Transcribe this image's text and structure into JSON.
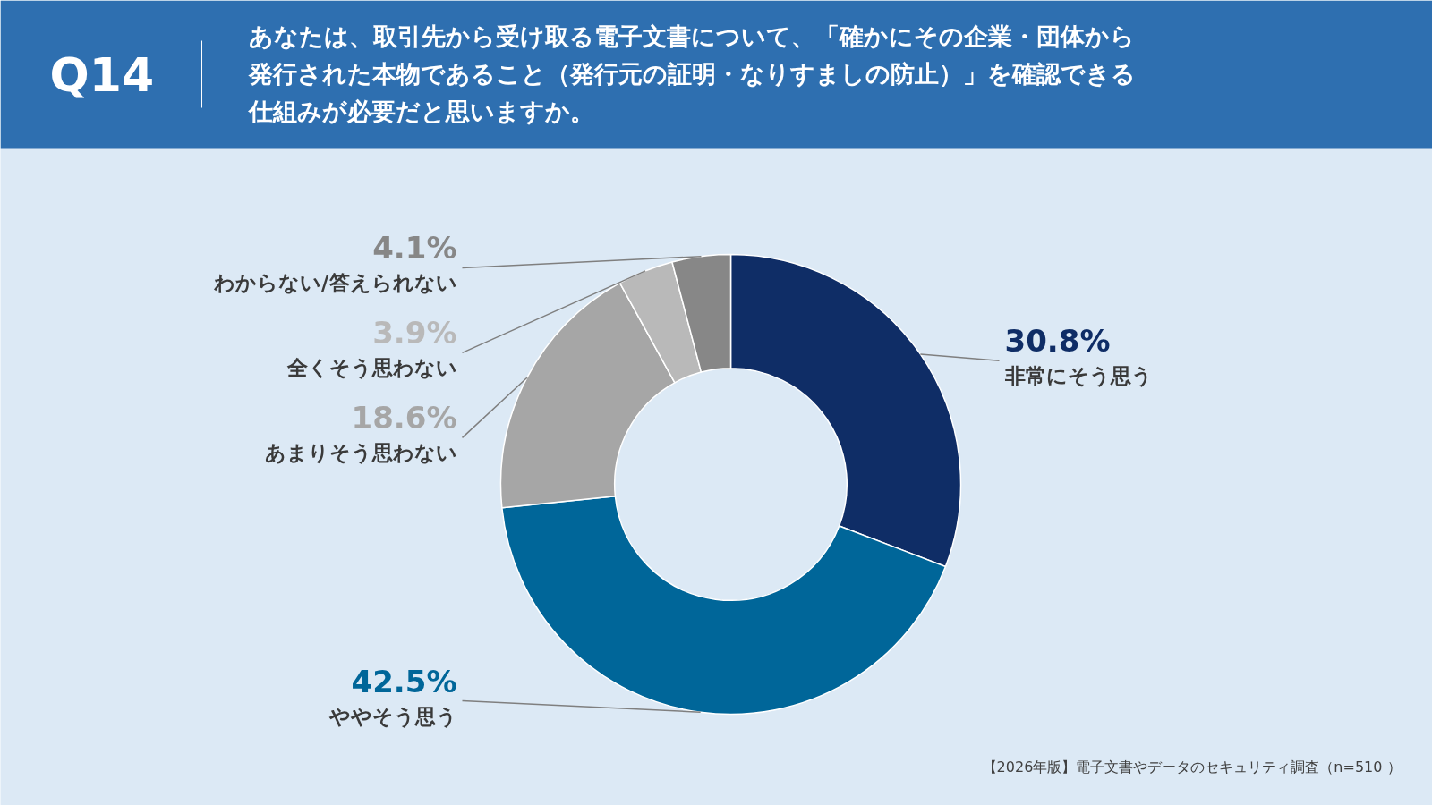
{
  "chart_data": {
    "type": "donut",
    "title": "Q14",
    "subtitle": "あなたは、取引先から受け取る電子文書について、「確かにその企業・団体から発行された本物であること（発行元の証明・なりすましの防止）」を確認できる仕組みが必要だと思いますか。",
    "categories": [
      "非常にそう思う",
      "ややそう思う",
      "あまりそう思わない",
      "全くそう思わない",
      "わからない/答えられない"
    ],
    "values": [
      30.8,
      42.5,
      18.6,
      3.9,
      4.1
    ],
    "colors": [
      "#0f2d66",
      "#006699",
      "#a6a6a6",
      "#b9b9b9",
      "#878787"
    ],
    "value_labels": [
      "30.8%",
      "42.5%",
      "18.6%",
      "3.9%",
      "4.1%"
    ],
    "annotations": [
      "【2026年版】電子文書やデータのセキュリティ調査（n=510 ）"
    ]
  }
}
